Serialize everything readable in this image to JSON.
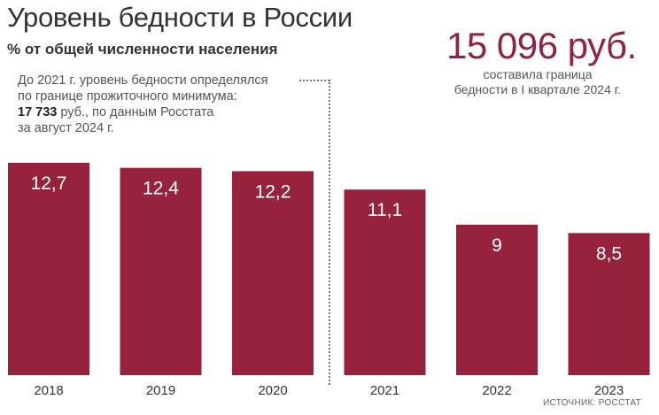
{
  "header": {
    "title": "Уровень бедности в России",
    "subtitle": "% от общей численности населения"
  },
  "callout": {
    "value": "15 096 руб.",
    "caption_line1": "составила граница",
    "caption_line2": "бедности в I квартале 2024 г."
  },
  "note": {
    "line1": "До 2021 г. уровень бедности определялся",
    "line2": "по границе прожиточного минимума:",
    "amount": "17 733",
    "line3_rest": " руб., по данным Росстата",
    "line4": "за август 2024 г."
  },
  "source": "ИСТОЧНИК: РОССТАТ",
  "colors": {
    "bar": "#96223e",
    "label": "#ffffff",
    "axis_text": "#333333"
  },
  "chart_data": {
    "type": "bar",
    "categories": [
      "2018",
      "2019",
      "2020",
      "2021",
      "2022",
      "2023"
    ],
    "values": [
      12.7,
      12.4,
      12.2,
      11.1,
      9,
      8.5
    ],
    "value_labels": [
      "12,7",
      "12,4",
      "12,2",
      "11,1",
      "9",
      "8,5"
    ],
    "title": "Уровень бедности в России",
    "ylabel": "% от общей численности населения",
    "ylim": [
      0,
      12.7
    ],
    "grid": false,
    "legend": "none"
  }
}
